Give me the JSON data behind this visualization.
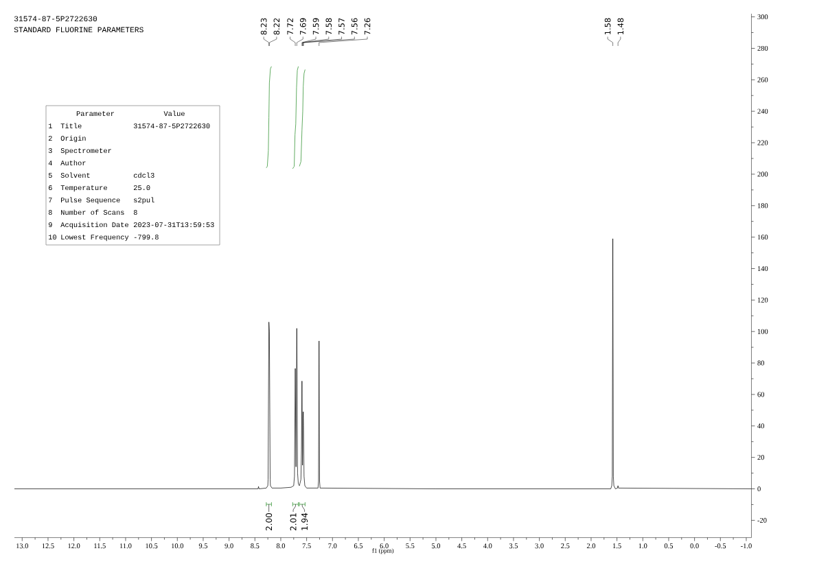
{
  "chart_data": {
    "type": "line",
    "title": "31574-87-5P2722630",
    "subtitle": "STANDARD FLUORINE PARAMETERS",
    "xlabel": "f1 (ppm)",
    "xlim": [
      13.15,
      -1.1
    ],
    "xticks": [
      {
        "value": 13,
        "label": "13.0"
      },
      {
        "value": 12.5,
        "label": "12.5"
      },
      {
        "value": 12,
        "label": "12.0"
      },
      {
        "value": 11.5,
        "label": "11.5"
      },
      {
        "value": 11,
        "label": "11.0"
      },
      {
        "value": 10.5,
        "label": "10.5"
      },
      {
        "value": 10,
        "label": "10.0"
      },
      {
        "value": 9.5,
        "label": "9.5"
      },
      {
        "value": 9,
        "label": "9.0"
      },
      {
        "value": 8.5,
        "label": "8.5"
      },
      {
        "value": 8,
        "label": "8.0"
      },
      {
        "value": 7.5,
        "label": "7.5"
      },
      {
        "value": 7,
        "label": "7.0"
      },
      {
        "value": 6.5,
        "label": "6.5"
      },
      {
        "value": 6,
        "label": "6.0"
      },
      {
        "value": 5.5,
        "label": "5.5"
      },
      {
        "value": 5,
        "label": "5.0"
      },
      {
        "value": 4.5,
        "label": "4.5"
      },
      {
        "value": 4,
        "label": "4.0"
      },
      {
        "value": 3.5,
        "label": "3.5"
      },
      {
        "value": 3,
        "label": "3.0"
      },
      {
        "value": 2.5,
        "label": "2.5"
      },
      {
        "value": 2,
        "label": "2.0"
      },
      {
        "value": 1.5,
        "label": "1.5"
      },
      {
        "value": 1,
        "label": "1.0"
      },
      {
        "value": 0.5,
        "label": "0.5"
      },
      {
        "value": 0,
        "label": "0.0"
      },
      {
        "value": -0.5,
        "label": "-0.5"
      },
      {
        "value": -1,
        "label": "-1.0"
      }
    ],
    "ylim": [
      -31,
      302
    ],
    "yticks": [
      -20,
      0,
      20,
      40,
      60,
      80,
      100,
      120,
      140,
      160,
      180,
      200,
      220,
      240,
      260,
      280,
      300
    ],
    "series": [
      {
        "color": "#000000",
        "x": [
          13.15,
          10.0,
          8.5,
          8.44,
          8.43,
          8.42,
          8.28,
          8.25,
          8.245,
          8.23,
          8.22,
          8.205,
          8.2,
          8.17,
          8.0,
          7.8,
          7.75,
          7.735,
          7.72,
          7.705,
          7.69,
          7.675,
          7.66,
          7.64,
          7.61,
          7.6,
          7.59,
          7.58,
          7.57,
          7.565,
          7.56,
          7.55,
          7.535,
          7.5,
          7.28,
          7.27,
          7.26,
          7.25,
          7.24,
          5.0,
          1.62,
          1.6,
          1.59,
          1.58,
          1.57,
          1.56,
          1.53,
          1.49,
          1.48,
          1.47,
          -1.1
        ],
        "values": [
          0,
          0,
          0,
          0,
          1.5,
          0,
          0.5,
          2,
          6,
          106,
          100,
          6,
          2,
          0.5,
          0.5,
          1,
          2,
          8,
          76.5,
          14,
          102,
          10,
          3,
          2,
          6,
          25,
          68.5,
          15,
          45,
          49,
          40,
          8,
          2,
          0.5,
          0.5,
          5,
          94,
          5,
          0.5,
          0,
          0,
          2,
          8,
          159,
          8,
          2,
          0,
          0.5,
          2,
          0.5,
          0
        ]
      },
      {
        "color": "#3a973a",
        "x": [
          8.28,
          8.26,
          8.24,
          8.23,
          8.22,
          8.2,
          8.18
        ],
        "values": [
          204,
          205,
          215,
          236,
          258,
          267,
          268.5
        ]
      },
      {
        "color": "#3a973a",
        "x": [
          7.77,
          7.74,
          7.725,
          7.71,
          7.695,
          7.68,
          7.66
        ],
        "values": [
          203.5,
          205,
          225,
          232,
          255,
          266,
          268.5
        ]
      },
      {
        "color": "#3a973a",
        "x": [
          7.64,
          7.61,
          7.59,
          7.575,
          7.565,
          7.55,
          7.53
        ],
        "values": [
          205,
          208,
          228,
          240,
          256,
          264,
          266.5
        ]
      }
    ],
    "annotations": [
      {
        "text": "8.23",
        "x": 8.23
      },
      {
        "text": "8.22",
        "x": 8.22
      },
      {
        "text": "7.72",
        "x": 7.72
      },
      {
        "text": "7.69",
        "x": 7.69
      },
      {
        "text": "7.59",
        "x": 7.59
      },
      {
        "text": "7.58",
        "x": 7.58
      },
      {
        "text": "7.57",
        "x": 7.57
      },
      {
        "text": "7.56",
        "x": 7.56
      },
      {
        "text": "7.26",
        "x": 7.26
      },
      {
        "text": "1.58",
        "x": 1.58
      },
      {
        "text": "1.48",
        "x": 1.48
      },
      "2.00",
      "2.01",
      "1.94",
      "Parameter",
      "Value",
      "1",
      "Title",
      "31574-87-5P2722630",
      "2",
      "Origin",
      null,
      "3",
      "Spectrometer",
      null,
      "4",
      "Author",
      null,
      "5",
      "Solvent",
      "cdcl3",
      "6",
      "Temperature",
      "25.0",
      "7",
      "Pulse Sequence",
      "s2pul",
      "8",
      "Number of Scans",
      "8",
      "9",
      "Acquisition Date",
      "2023-07-31T13:59:53",
      "10",
      "Lowest Frequency",
      "-799.8"
    ]
  }
}
